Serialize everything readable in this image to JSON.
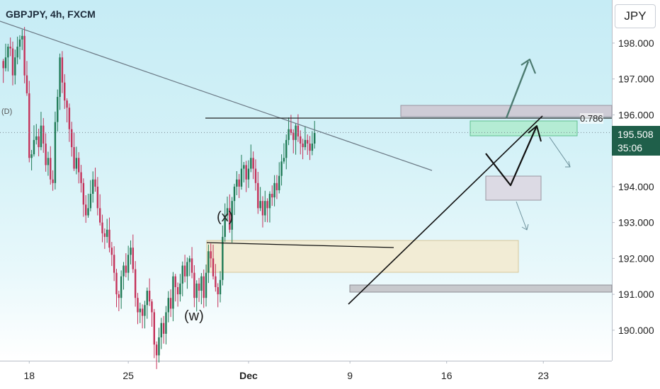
{
  "header": {
    "ticker": "GBPJPY, 4h, FXCM"
  },
  "currency_button": "JPY",
  "price_badge": {
    "price": "195.508",
    "timer": "35:06"
  },
  "indicator_label": "(D)",
  "fib_label": "0.786",
  "wave_labels": {
    "x": "(x)",
    "w": "(w)"
  },
  "colors": {
    "bull": "#1e7a55",
    "bear": "#c4325a",
    "accent": "#1f5f4a"
  },
  "chart_data": {
    "type": "candlestick",
    "title": "GBPJPY, 4h, FXCM",
    "ylim": [
      189.15,
      199.2
    ],
    "y_ticks": [
      190,
      191,
      192,
      193,
      194,
      195,
      196,
      197,
      198
    ],
    "y_tick_labels": [
      "190.000",
      "191.000",
      "192.000",
      "193.000",
      "194.000",
      "195.000",
      "196.000",
      "197.000",
      "198.000"
    ],
    "x_ticks": [
      {
        "label": "18",
        "bar": 11,
        "bold": false
      },
      {
        "label": "25",
        "bar": 53,
        "bold": false
      },
      {
        "label": "Dec",
        "bar": 104,
        "bold": true
      },
      {
        "label": "9",
        "bar": 147,
        "bold": false
      },
      {
        "label": "16",
        "bar": 188,
        "bold": false
      },
      {
        "label": "23",
        "bar": 229,
        "bold": false
      }
    ],
    "current_price": 195.508,
    "fib_level": 195.95,
    "closes": [
      197.3,
      197.6,
      197.9,
      197.85,
      197.1,
      197.6,
      197.9,
      198.1,
      198.2,
      197.1,
      196.6,
      194.8,
      194.9,
      195.3,
      195.4,
      195.1,
      195.7,
      195.2,
      194.6,
      194.8,
      194.2,
      194.1,
      195.8,
      196.5,
      197.6,
      196.9,
      196.4,
      196.2,
      195.6,
      195.1,
      194.5,
      194.8,
      194.4,
      194.1,
      193.5,
      193.2,
      193.4,
      193.8,
      194.2,
      194.0,
      193.4,
      193.0,
      192.7,
      192.6,
      192.8,
      192.3,
      192.1,
      191.6,
      191.0,
      190.9,
      191.5,
      191.8,
      191.6,
      192.1,
      192.3,
      191.7,
      190.9,
      190.5,
      190.6,
      190.4,
      190.7,
      191.1,
      190.8,
      190.5,
      189.6,
      189.3,
      189.8,
      190.2,
      189.9,
      190.5,
      190.9,
      190.6,
      191.5,
      191.2,
      191.0,
      191.3,
      191.8,
      191.5,
      191.9,
      192.0,
      191.6,
      190.9,
      191.3,
      191.1,
      191.5,
      190.9,
      191.6,
      192.2,
      192.0,
      191.5,
      191.2,
      191.0,
      191.4,
      192.6,
      193.2,
      193.4,
      192.8,
      193.6,
      194.0,
      194.2,
      194.0,
      194.5,
      194.6,
      194.2,
      194.5,
      194.8,
      194.5,
      194.1,
      193.4,
      193.6,
      193.2,
      193.6,
      193.4,
      193.8,
      193.7,
      194.1,
      193.9,
      194.3,
      194.7,
      194.8,
      195.3,
      195.6,
      195.5,
      195.3,
      195.7,
      195.4,
      195.2,
      195.1,
      195.3,
      195.2,
      195.0,
      195.2,
      195.5
    ],
    "extra_bars": "generated procedurally"
  }
}
